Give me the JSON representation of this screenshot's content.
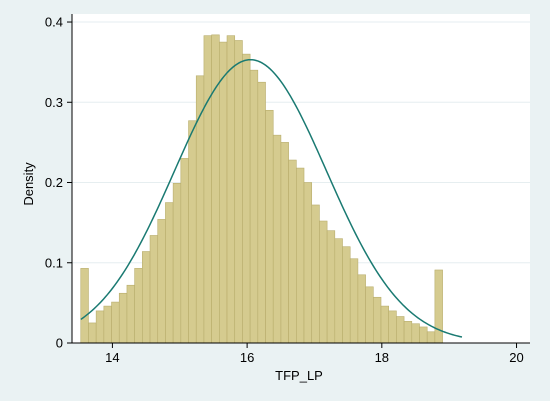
{
  "colors": {
    "outer_background": "#eaf2f3",
    "plot_background": "#ffffff",
    "bar_fill": "#d5cb8f",
    "bar_stroke": "#b8ad6c",
    "gridline": "#e6eef0",
    "curve": "#1a7a72",
    "axis": "#000000"
  },
  "chart_data": {
    "type": "bar",
    "xlabel": "TFP_LP",
    "ylabel": "Density",
    "xlim": [
      13.4,
      20.2
    ],
    "ylim": [
      0,
      0.41
    ],
    "x_ticks": [
      14,
      16,
      18,
      20
    ],
    "x_tick_labels": [
      "14",
      "16",
      "18",
      "20"
    ],
    "y_ticks": [
      0,
      0.1,
      0.2,
      0.3,
      0.4
    ],
    "y_tick_labels": [
      "0",
      "0.1",
      "0.2",
      "0.3",
      "0.4"
    ],
    "grid": true,
    "bin_start": 13.53,
    "bin_width": 0.1143,
    "densities": [
      0.093,
      0.025,
      0.04,
      0.046,
      0.051,
      0.062,
      0.072,
      0.093,
      0.114,
      0.134,
      0.154,
      0.175,
      0.199,
      0.23,
      0.277,
      0.333,
      0.383,
      0.384,
      0.375,
      0.383,
      0.377,
      0.36,
      0.34,
      0.325,
      0.29,
      0.259,
      0.25,
      0.228,
      0.218,
      0.2,
      0.172,
      0.152,
      0.14,
      0.13,
      0.12,
      0.105,
      0.085,
      0.07,
      0.057,
      0.046,
      0.04,
      0.033,
      0.027,
      0.024,
      0.02,
      0.014,
      0.091
    ],
    "normal_curve": {
      "mean": 16.05,
      "sd": 1.13,
      "x_range": [
        13.53,
        19.19
      ]
    }
  }
}
